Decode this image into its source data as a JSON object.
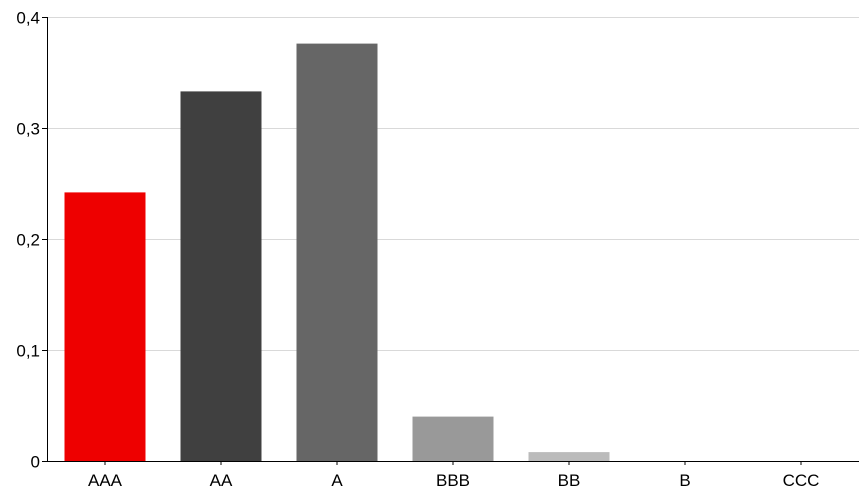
{
  "chart_data": {
    "type": "bar",
    "title": "",
    "xlabel": "",
    "ylabel": "",
    "categories": [
      "AAA",
      "AA",
      "A",
      "BBB",
      "BB",
      "B",
      "CCC"
    ],
    "values": [
      0.242,
      0.333,
      0.376,
      0.04,
      0.008,
      0.0,
      0.0
    ],
    "colors": [
      "#ee0000",
      "#404040",
      "#666666",
      "#999999",
      "#bbbbbb",
      "#cccccc",
      "#dddddd"
    ],
    "ylim": [
      0,
      0.4
    ],
    "yticks": [
      {
        "value": 0,
        "label": "0"
      },
      {
        "value": 0.1,
        "label": "0,1"
      },
      {
        "value": 0.2,
        "label": "0,2"
      },
      {
        "value": 0.3,
        "label": "0,3"
      },
      {
        "value": 0.4,
        "label": "0,4"
      }
    ],
    "grid": true,
    "legend": "none"
  }
}
